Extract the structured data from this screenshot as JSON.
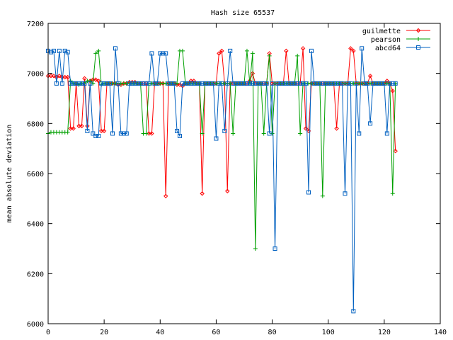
{
  "chart_data": {
    "type": "line",
    "title": "Hash size 65537",
    "xlabel": "",
    "ylabel": "mean absolute deviation",
    "xlim": [
      0,
      140
    ],
    "ylim": [
      6000,
      7200
    ],
    "xticks": [
      0,
      20,
      40,
      60,
      80,
      100,
      120,
      140
    ],
    "yticks": [
      6000,
      6200,
      6400,
      6600,
      6800,
      7000,
      7200
    ],
    "grid": false,
    "legend_position": "top-right",
    "series": [
      {
        "name": "guilmette",
        "color": "#ff0000",
        "marker": "diamond",
        "values": [
          6990,
          6990,
          6990,
          6985,
          6990,
          6985,
          6985,
          6985,
          6780,
          6780,
          6960,
          6790,
          6790,
          6980,
          6790,
          6970,
          6975,
          6975,
          6970,
          6770,
          6770,
          6960,
          6960,
          6960,
          6960,
          6955,
          6955,
          6960,
          6960,
          6965,
          6965,
          6965,
          6960,
          6960,
          6960,
          6960,
          6760,
          6760,
          6960,
          6960,
          6960,
          6960,
          6510,
          6960,
          6960,
          6960,
          6955,
          6955,
          6950,
          6960,
          6960,
          6970,
          6970,
          6960,
          6960,
          6520,
          6960,
          6960,
          6960,
          6960,
          6960,
          7080,
          7090,
          6960,
          6530,
          6960,
          6960,
          6960,
          6960,
          6960,
          6960,
          6960,
          6970,
          7000,
          6960,
          6960,
          6960,
          6960,
          6960,
          7080,
          6960,
          6960,
          6960,
          6960,
          6960,
          7090,
          6960,
          6960,
          6960,
          6960,
          6960,
          7100,
          6780,
          6770,
          6960,
          6960,
          6960,
          6960,
          6960,
          6960,
          6960,
          6960,
          6960,
          6780,
          6960,
          6960,
          6960,
          6960,
          7100,
          7090,
          6960,
          6960,
          6960,
          6960,
          6960,
          6990,
          6960,
          6960,
          6960,
          6960,
          6960,
          6970,
          6960,
          6930,
          6690
        ]
      },
      {
        "name": "pearson",
        "color": "#00a000",
        "marker": "plus",
        "values": [
          6760,
          6765,
          6765,
          6765,
          6765,
          6765,
          6765,
          6765,
          6970,
          6960,
          6960,
          6955,
          6960,
          6960,
          6970,
          6970,
          6960,
          7080,
          7090,
          6955,
          6960,
          6960,
          6960,
          6960,
          6960,
          6960,
          6960,
          6960,
          6960,
          6960,
          6960,
          6960,
          6960,
          6960,
          6760,
          6760,
          6960,
          6960,
          6960,
          6960,
          6960,
          6960,
          6960,
          6960,
          6960,
          6960,
          6960,
          7090,
          7090,
          6960,
          6960,
          6960,
          6960,
          6960,
          6960,
          6760,
          6960,
          6960,
          6960,
          6960,
          6960,
          6960,
          6960,
          6960,
          6960,
          6960,
          6760,
          6960,
          6960,
          6960,
          6960,
          7090,
          6960,
          7080,
          6300,
          6960,
          6960,
          6760,
          6960,
          7070,
          6760,
          6960,
          6960,
          6960,
          6960,
          6960,
          6960,
          6960,
          6960,
          7070,
          6760,
          6960,
          6960,
          6960,
          6960,
          6960,
          6960,
          6960,
          6510,
          6960,
          6960,
          6960,
          6960,
          6960,
          6960,
          6960,
          6960,
          6960,
          6960,
          6960,
          6960,
          6960,
          6960,
          6960,
          6960,
          6960,
          6960,
          6960,
          6960,
          6960,
          6960,
          6960,
          6960,
          6520,
          6960
        ]
      },
      {
        "name": "abcd64",
        "color": "#0060c0",
        "marker": "square",
        "values": [
          7090,
          7085,
          7090,
          6960,
          7090,
          6960,
          7090,
          7085,
          6960,
          6960,
          6960,
          6960,
          6960,
          6960,
          6770,
          6960,
          6760,
          6750,
          6750,
          6960,
          6960,
          6960,
          6960,
          6760,
          7100,
          6960,
          6760,
          6760,
          6760,
          6960,
          6960,
          6960,
          6960,
          6960,
          6960,
          6960,
          6960,
          7080,
          6960,
          6960,
          7080,
          7080,
          7080,
          6960,
          6960,
          6960,
          6770,
          6750,
          6960,
          6960,
          6960,
          6960,
          6960,
          6960,
          6960,
          6960,
          6960,
          6960,
          6960,
          6960,
          6740,
          6960,
          6960,
          6770,
          6960,
          7090,
          6960,
          6960,
          6960,
          6960,
          6960,
          6960,
          6960,
          6960,
          6960,
          6960,
          6960,
          6960,
          6960,
          6760,
          6960,
          6300,
          6960,
          6960,
          6960,
          6960,
          6960,
          6960,
          6960,
          6960,
          6960,
          6960,
          6960,
          6525,
          7090,
          6960,
          6960,
          6960,
          6960,
          6960,
          6960,
          6960,
          6960,
          6960,
          6960,
          6960,
          6520,
          6960,
          6960,
          6050,
          6960,
          6760,
          7100,
          6960,
          6960,
          6800,
          6960,
          6960,
          6960,
          6960,
          6960,
          6760,
          6960,
          6960,
          6960
        ]
      }
    ]
  }
}
